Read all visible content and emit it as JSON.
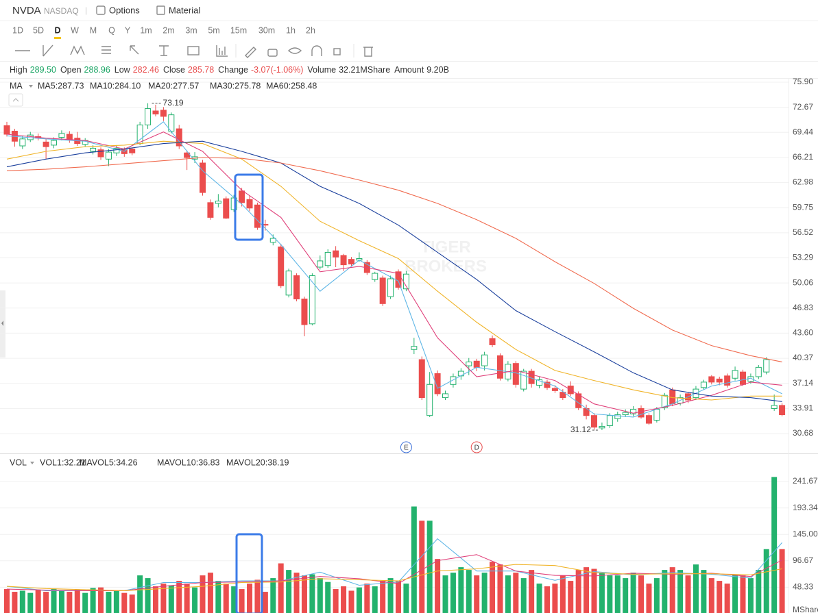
{
  "header": {
    "symbol": "NVDA",
    "exchange": "NASDAQ",
    "separator": "|",
    "tabs": [
      "Options",
      "Material"
    ]
  },
  "periods": [
    "1D",
    "5D",
    "D",
    "W",
    "M",
    "Q",
    "Y",
    "1m",
    "2m",
    "3m",
    "5m",
    "15m",
    "30m",
    "1h",
    "2h"
  ],
  "selected_period": 2,
  "quote": [
    {
      "label": "High",
      "value": "289.50",
      "color": "#1aa564"
    },
    {
      "label": "Open",
      "value": "288.96",
      "color": "#1aa564"
    },
    {
      "label": "Low",
      "value": "282.46",
      "color": "#e84d4d"
    },
    {
      "label": "Close",
      "value": "285.78",
      "color": "#e84d4d"
    },
    {
      "label": "Change",
      "value": "-3.07(-1.06%)",
      "color": "#e84d4d"
    },
    {
      "label": "Volume",
      "value": "32.21MShare",
      "color": "#333333"
    },
    {
      "label": "Amount",
      "value": "9.20B",
      "color": "#333333"
    }
  ],
  "watermark": [
    "TIGER",
    "BROKERS"
  ],
  "chart_data": [
    {
      "type": "candlestick",
      "legend_title": "MA",
      "up_color": "#23b26d",
      "down_color": "#eb4d4d",
      "up_hollow": true,
      "open": [
        70.3,
        69.6,
        67.7,
        68.5,
        68.9,
        68.2,
        67.8,
        68.8,
        69.2,
        68.7,
        67.9,
        67.0,
        67.2,
        66.0,
        66.8,
        67.2,
        67.3,
        68.0,
        70.4,
        72.2,
        72.3,
        69.6,
        69.9,
        66.8,
        66.0,
        65.5,
        60.4,
        60.3,
        60.9,
        59.5,
        61.9,
        60.8,
        60.1,
        57.6,
        55.3,
        54.7,
        48.5,
        51.0,
        48.0,
        44.8,
        52.1,
        52.3,
        54.2,
        53.6,
        53.1,
        53.0,
        52.7,
        50.5,
        50.7,
        48.3,
        51.5,
        49.3,
        41.5,
        40.2,
        33.0,
        38.4,
        35.3,
        37.0,
        38.1,
        39.4,
        40.0,
        39.4,
        42.9,
        40.7,
        37.7,
        39.7,
        36.4,
        38.7,
        36.9,
        37.3,
        36.5,
        36.0,
        36.8,
        35.8,
        33.9,
        33.0,
        31.4,
        31.7,
        32.6,
        33.1,
        33.2,
        33.9,
        33.0,
        32.4,
        34.0,
        36.3,
        34.6,
        35.8,
        35.3,
        36.6,
        38.0,
        37.7,
        38.1,
        37.8,
        38.6,
        37.4,
        38.0,
        38.6,
        33.9,
        34.3
      ],
      "high": [
        70.8,
        69.9,
        69.0,
        69.5,
        69.3,
        68.6,
        68.8,
        69.7,
        69.6,
        69.5,
        68.7,
        67.8,
        67.5,
        67.3,
        67.8,
        67.5,
        67.5,
        70.8,
        73.19,
        73.0,
        72.7,
        72.0,
        70.4,
        67.1,
        66.9,
        65.9,
        60.8,
        61.5,
        61.2,
        61.4,
        62.3,
        61.3,
        60.4,
        58.2,
        56.3,
        55.1,
        51.9,
        51.3,
        48.3,
        51.3,
        53.6,
        54.4,
        54.8,
        53.8,
        53.4,
        54.0,
        53.0,
        51.5,
        51.0,
        51.0,
        51.8,
        51.6,
        43.0,
        40.6,
        38.6,
        38.8,
        36.2,
        38.4,
        39.1,
        40.4,
        40.3,
        41.2,
        43.3,
        41.0,
        40.0,
        40.0,
        39.0,
        39.0,
        38.0,
        37.6,
        36.9,
        36.4,
        37.4,
        36.1,
        34.4,
        33.3,
        32.1,
        33.3,
        33.5,
        33.8,
        34.2,
        34.3,
        33.3,
        34.1,
        35.9,
        36.6,
        35.7,
        36.0,
        36.8,
        37.6,
        38.2,
        38.0,
        38.4,
        39.3,
        38.9,
        38.4,
        39.5,
        40.5,
        35.7,
        34.6
      ],
      "low": [
        68.9,
        67.6,
        67.3,
        68.2,
        68.4,
        66.0,
        67.4,
        68.4,
        68.1,
        67.7,
        67.6,
        66.6,
        65.9,
        65.1,
        66.4,
        66.3,
        66.5,
        67.8,
        69.9,
        71.5,
        70.9,
        69.3,
        67.3,
        64.6,
        65.5,
        61.3,
        58.2,
        59.8,
        58.3,
        59.2,
        59.9,
        59.3,
        56.9,
        56.8,
        54.9,
        49.4,
        48.2,
        47.7,
        43.2,
        44.6,
        51.8,
        52.0,
        52.1,
        51.6,
        52.2,
        52.8,
        51.1,
        50.2,
        47.1,
        48.0,
        49.2,
        49.0,
        40.9,
        35.0,
        32.8,
        35.5,
        35.0,
        36.6,
        37.6,
        38.2,
        38.7,
        38.8,
        41.8,
        37.5,
        37.4,
        36.6,
        36.1,
        36.6,
        36.5,
        36.3,
        35.9,
        35.0,
        35.5,
        33.7,
        32.5,
        31.2,
        31.12,
        31.4,
        32.2,
        32.8,
        32.9,
        32.6,
        31.8,
        32.1,
        33.7,
        34.2,
        34.3,
        34.6,
        35.0,
        36.3,
        37.0,
        36.9,
        36.6,
        37.5,
        36.8,
        37.1,
        37.7,
        38.3,
        33.6,
        32.9
      ],
      "close": [
        69.2,
        68.3,
        68.6,
        69.1,
        68.7,
        67.6,
        68.4,
        69.3,
        68.5,
        68.0,
        68.4,
        67.4,
        66.3,
        66.9,
        67.4,
        66.7,
        66.8,
        70.4,
        72.5,
        71.8,
        71.5,
        71.7,
        67.7,
        66.2,
        66.3,
        61.7,
        58.5,
        60.6,
        58.4,
        61.0,
        60.4,
        59.7,
        57.2,
        57.5,
        55.8,
        49.7,
        51.6,
        48.0,
        44.7,
        51.0,
        52.9,
        54.0,
        53.4,
        52.4,
        52.5,
        53.2,
        51.4,
        51.3,
        47.4,
        50.6,
        49.5,
        51.2,
        41.9,
        35.3,
        37.0,
        35.8,
        35.8,
        38.0,
        38.7,
        39.9,
        39.2,
        40.8,
        42.1,
        37.8,
        39.6,
        37.0,
        38.7,
        37.1,
        37.6,
        36.6,
        36.2,
        35.3,
        35.8,
        34.0,
        33.0,
        31.5,
        31.6,
        33.0,
        33.1,
        33.4,
        33.8,
        32.8,
        32.0,
        33.8,
        35.6,
        34.5,
        35.3,
        35.0,
        36.4,
        37.3,
        37.3,
        37.3,
        36.9,
        38.8,
        37.0,
        38.0,
        39.2,
        40.2,
        34.3,
        33.1
      ],
      "series": [
        {
          "name": "MA5:287.73",
          "color": "#5fb6e6",
          "x": [
            0,
            5,
            10,
            15,
            20,
            25,
            30,
            35,
            40,
            45,
            50,
            55,
            60,
            65,
            70,
            75,
            80,
            85,
            90,
            95,
            99
          ],
          "values": [
            69.0,
            68.6,
            68.3,
            67.0,
            70.8,
            64.5,
            60.2,
            55.0,
            49.0,
            53.0,
            50.3,
            36.5,
            39.2,
            38.5,
            36.8,
            33.2,
            32.8,
            34.5,
            36.8,
            37.8,
            35.8
          ]
        },
        {
          "name": "MA10:284.10",
          "color": "#e0407a",
          "x": [
            0,
            5,
            10,
            15,
            20,
            25,
            30,
            35,
            40,
            45,
            50,
            55,
            60,
            65,
            70,
            75,
            80,
            85,
            90,
            95,
            99
          ],
          "values": [
            69.2,
            68.7,
            68.4,
            67.3,
            69.5,
            67.0,
            62.0,
            58.5,
            51.5,
            52.2,
            51.3,
            43.0,
            38.0,
            38.8,
            37.5,
            34.5,
            33.3,
            34.3,
            35.6,
            37.3,
            36.9
          ]
        },
        {
          "name": "MA20:277.57",
          "color": "#f0b429",
          "x": [
            0,
            5,
            10,
            15,
            20,
            25,
            30,
            35,
            40,
            45,
            50,
            55,
            60,
            65,
            70,
            75,
            80,
            85,
            90,
            95,
            99
          ],
          "values": [
            66.0,
            67.0,
            67.6,
            67.8,
            68.3,
            68.0,
            66.0,
            62.5,
            58.0,
            55.5,
            53.2,
            49.0,
            45.0,
            41.5,
            38.8,
            37.5,
            36.3,
            35.3,
            35.0,
            35.5,
            35.5
          ]
        },
        {
          "name": "MA30:275.78",
          "color": "#1a3f9c",
          "x": [
            0,
            5,
            10,
            15,
            20,
            25,
            30,
            35,
            40,
            45,
            50,
            55,
            60,
            65,
            70,
            75,
            80,
            85,
            90,
            95,
            99
          ],
          "values": [
            65.0,
            66.0,
            66.8,
            67.3,
            68.0,
            68.3,
            67.0,
            65.5,
            62.5,
            60.3,
            57.5,
            54.0,
            50.5,
            46.5,
            43.8,
            41.2,
            38.5,
            36.3,
            35.5,
            35.3,
            34.8
          ]
        },
        {
          "name": "MA60:258.48",
          "color": "#f06b4f",
          "x": [
            0,
            5,
            10,
            15,
            20,
            25,
            30,
            35,
            40,
            45,
            50,
            55,
            60,
            65,
            70,
            75,
            80,
            85,
            90,
            95,
            99
          ],
          "values": [
            64.5,
            64.7,
            65.0,
            65.4,
            65.8,
            66.2,
            66.1,
            65.5,
            64.5,
            63.3,
            62.0,
            60.3,
            58.2,
            55.8,
            52.8,
            50.0,
            46.8,
            44.0,
            42.0,
            40.7,
            39.9
          ]
        }
      ],
      "annotations": [
        {
          "value": 73.19,
          "index": 18,
          "side": "right"
        },
        {
          "value": 31.12,
          "index": 76,
          "side": "left"
        }
      ],
      "events": [
        {
          "text": "E",
          "index": 51,
          "color": "#3b6fd8"
        },
        {
          "text": "D",
          "index": 60,
          "color": "#e84d4d"
        }
      ],
      "ylim": [
        28.3,
        76.34
      ],
      "yticks": [
        30.68,
        33.91,
        37.14,
        40.37,
        {
          "value": 43.6,
          "label": "43.60"
        },
        46.83,
        50.06,
        53.29,
        56.52,
        59.75,
        62.98,
        66.21,
        69.44,
        72.67,
        {
          "value": 75.9,
          "label": "75.90"
        }
      ],
      "grid": true
    },
    {
      "type": "bar",
      "legend_title": "VOL",
      "unit": "MShare",
      "series": [
        {
          "name": "VOL1:32.21",
          "color": "#f05a5a",
          "values": [
            45,
            40,
            42,
            38,
            44,
            40,
            46,
            42,
            40,
            44,
            38,
            47,
            48,
            40,
            42,
            38,
            35,
            70,
            65,
            50,
            55,
            52,
            60,
            55,
            48,
            70,
            75,
            60,
            55,
            50,
            45,
            55,
            62,
            40,
            65,
            92,
            80,
            75,
            70,
            72,
            65,
            58,
            45,
            50,
            42,
            48,
            55,
            50,
            60,
            65,
            60,
            55,
            196,
            170,
            170,
            100,
            70,
            75,
            85,
            80,
            70,
            75,
            95,
            90,
            70,
            75,
            65,
            80,
            55,
            50,
            55,
            70,
            60,
            80,
            85,
            82,
            75,
            70,
            70,
            65,
            75,
            70,
            55,
            65,
            80,
            85,
            80,
            70,
            90,
            80,
            65,
            60,
            55,
            70,
            70,
            65,
            80,
            118,
            250,
            118
          ]
        },
        {
          "name": "MAVOL5:34.26",
          "color": "#5fb6e6",
          "x": [
            0,
            5,
            10,
            15,
            20,
            25,
            30,
            35,
            40,
            45,
            50,
            55,
            60,
            65,
            70,
            75,
            80,
            85,
            90,
            95,
            99
          ],
          "values": [
            50,
            42,
            42,
            42,
            57,
            57,
            60,
            60,
            76,
            52,
            58,
            137,
            78,
            78,
            61,
            77,
            71,
            75,
            72,
            65,
            130
          ]
        },
        {
          "name": "MAVOL10:36.83",
          "color": "#e0407a",
          "x": [
            0,
            5,
            10,
            15,
            20,
            25,
            30,
            35,
            40,
            45,
            50,
            55,
            60,
            65,
            70,
            75,
            80,
            85,
            90,
            95,
            99
          ],
          "values": [
            45,
            43,
            42,
            42,
            50,
            57,
            58,
            60,
            68,
            64,
            55,
            97,
            108,
            78,
            70,
            69,
            74,
            72,
            74,
            68,
            98
          ]
        },
        {
          "name": "MAVOL20:38.19",
          "color": "#f0b429",
          "x": [
            0,
            5,
            10,
            15,
            20,
            25,
            30,
            35,
            40,
            45,
            50,
            55,
            60,
            65,
            70,
            75,
            80,
            85,
            90,
            95,
            99
          ],
          "values": [
            50,
            46,
            44,
            42,
            46,
            50,
            57,
            58,
            64,
            62,
            60,
            78,
            82,
            90,
            88,
            75,
            72,
            73,
            73,
            71,
            82
          ]
        }
      ],
      "ylim": [
        0.6,
        258
      ],
      "yticks": [
        48.33,
        96.67,
        {
          "value": 145,
          "label": "145.00"
        },
        193.34,
        241.67
      ],
      "grid": true
    }
  ]
}
